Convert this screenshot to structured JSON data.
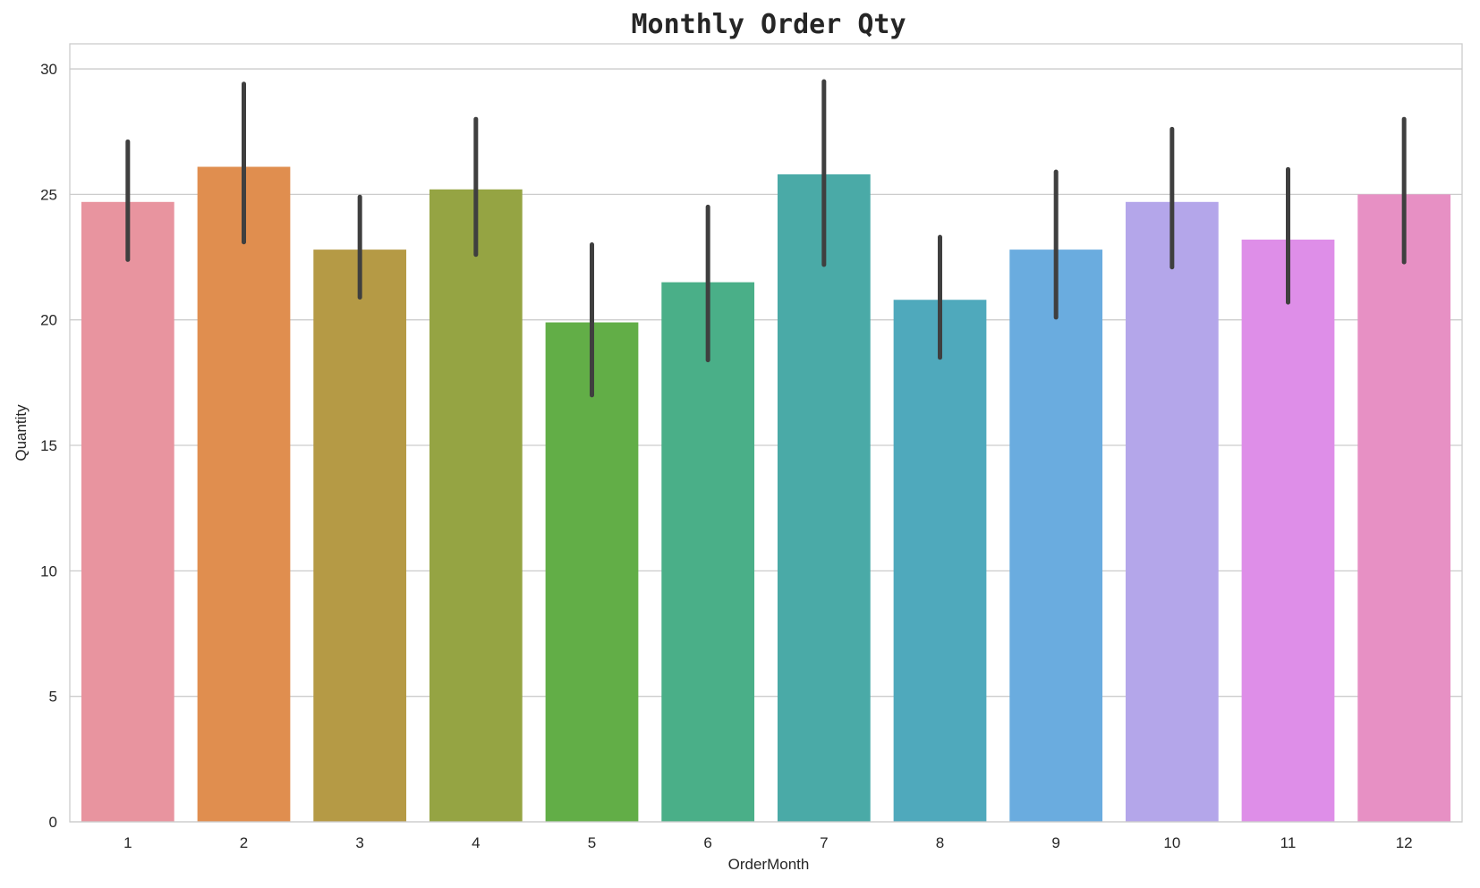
{
  "chart_data": {
    "type": "bar",
    "title": "Monthly Order Qty",
    "xlabel": "OrderMonth",
    "ylabel": "Quantity",
    "categories": [
      "1",
      "2",
      "3",
      "4",
      "5",
      "6",
      "7",
      "8",
      "9",
      "10",
      "11",
      "12"
    ],
    "values": [
      24.7,
      26.1,
      22.8,
      25.2,
      19.9,
      21.5,
      25.8,
      20.8,
      22.8,
      24.7,
      23.2,
      25.0
    ],
    "error_low": [
      22.4,
      23.1,
      20.9,
      22.6,
      17.0,
      18.4,
      22.2,
      18.5,
      20.1,
      22.1,
      20.7,
      22.3
    ],
    "error_high": [
      27.1,
      29.4,
      24.9,
      28.0,
      23.0,
      24.5,
      29.5,
      23.3,
      25.9,
      27.6,
      26.0,
      28.0
    ],
    "colors": [
      "#e8949f",
      "#e08e4f",
      "#b59a45",
      "#95a443",
      "#62ae47",
      "#4aaf88",
      "#4aaaa7",
      "#4fa9bc",
      "#6aacdf",
      "#b4a6ea",
      "#de8ee8",
      "#e790c4"
    ],
    "ylim": [
      0,
      31
    ],
    "yticks": [
      0,
      5,
      10,
      15,
      20,
      25,
      30
    ],
    "grid": true,
    "legend": "none"
  }
}
